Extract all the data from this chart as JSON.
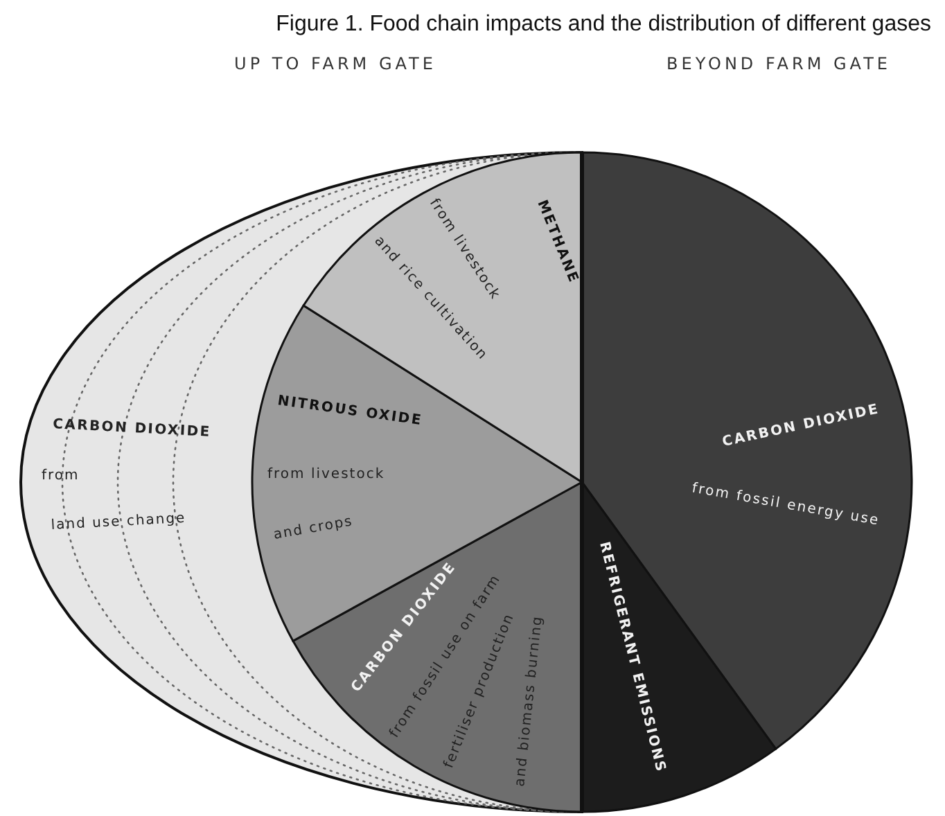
{
  "chart_data": {
    "type": "pie",
    "title": "Figure 1. Food chain impacts and the distribution of different gases",
    "categories": [
      "CARBON DIOXIDE",
      "REFRIGERANT EMISSIONS",
      "CARBON DIOXIDE",
      "NITROUS OXIDE",
      "METHANE"
    ],
    "values": [
      40,
      10,
      17,
      17,
      16
    ],
    "colors": [
      "#3d3d3d",
      "#1c1c1c",
      "#6e6e6e",
      "#9c9c9c",
      "#c0c0c0"
    ],
    "annotations": [
      "UP TO FARM GATE",
      "BEYOND FARM GATE",
      "CARBON DIOXIDE",
      "from",
      "land use change",
      "from livestock",
      "and rice cultivation",
      "from livestock",
      "and crops",
      "from fossil use on farm",
      "fertiliser production",
      "and biomass burning",
      "from fossil energy use"
    ]
  }
}
